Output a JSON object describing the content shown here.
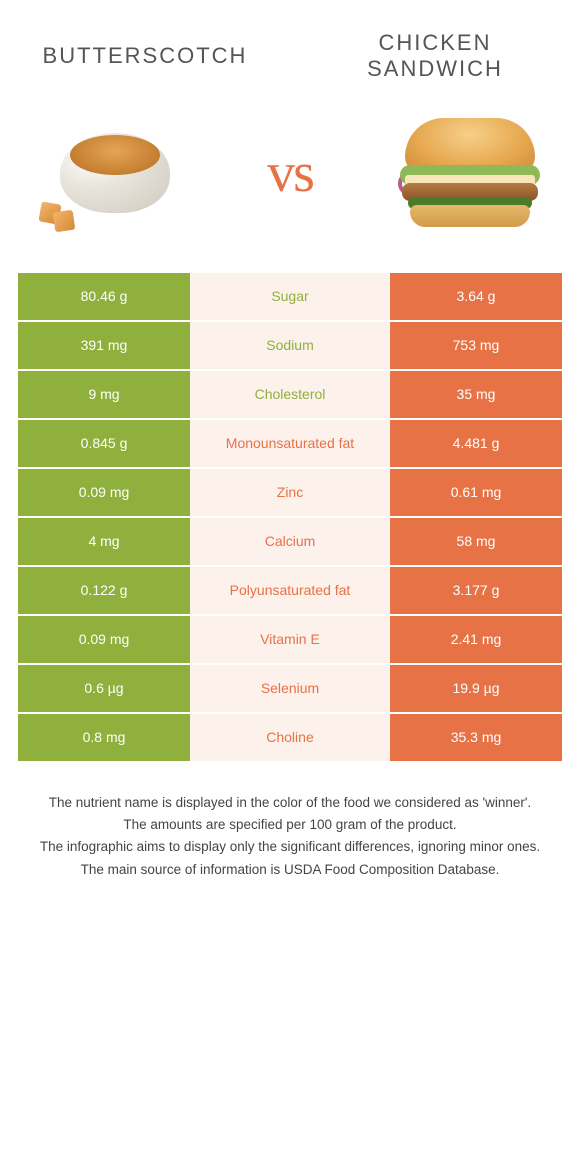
{
  "colors": {
    "green": "#8fb03c",
    "orange": "#e67246",
    "mid_bg": "#fdf1ec",
    "text_dark": "#555"
  },
  "foods": {
    "left": {
      "name": "BUTTERSCOTCH"
    },
    "right": {
      "name": "CHICKEN SANDWICH"
    }
  },
  "vs_text": "vs",
  "rows": [
    {
      "left": "80.46 g",
      "label": "Sugar",
      "right": "3.64 g",
      "winner": "left"
    },
    {
      "left": "391 mg",
      "label": "Sodium",
      "right": "753 mg",
      "winner": "left"
    },
    {
      "left": "9 mg",
      "label": "Cholesterol",
      "right": "35 mg",
      "winner": "left"
    },
    {
      "left": "0.845 g",
      "label": "Monounsaturated fat",
      "right": "4.481 g",
      "winner": "right"
    },
    {
      "left": "0.09 mg",
      "label": "Zinc",
      "right": "0.61 mg",
      "winner": "right"
    },
    {
      "left": "4 mg",
      "label": "Calcium",
      "right": "58 mg",
      "winner": "right"
    },
    {
      "left": "0.122 g",
      "label": "Polyunsaturated fat",
      "right": "3.177 g",
      "winner": "right"
    },
    {
      "left": "0.09 mg",
      "label": "Vitamin E",
      "right": "2.41 mg",
      "winner": "right"
    },
    {
      "left": "0.6 µg",
      "label": "Selenium",
      "right": "19.9 µg",
      "winner": "right"
    },
    {
      "left": "0.8 mg",
      "label": "Choline",
      "right": "35.3 mg",
      "winner": "right"
    }
  ],
  "footnotes": [
    "The nutrient name is displayed in the color of the food we considered as 'winner'.",
    "The amounts are specified per 100 gram of the product.",
    "The infographic aims to display only the significant differences, ignoring minor ones.",
    "The main source of information is USDA Food Composition Database."
  ]
}
